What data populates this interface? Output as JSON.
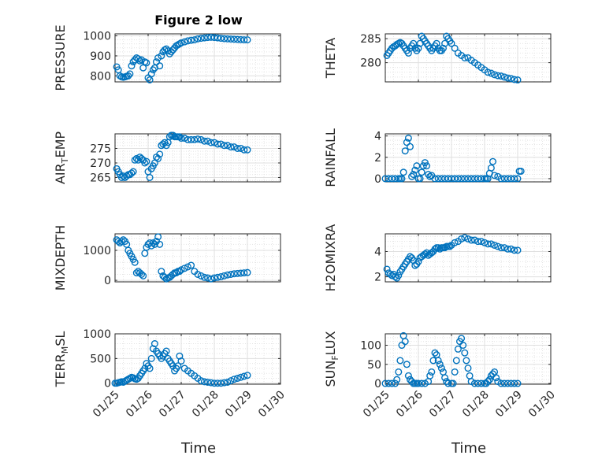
{
  "title": "Figure 2 low",
  "xlabel": "Time",
  "x_ticks": [
    "01/25",
    "01/26",
    "01/27",
    "01/28",
    "01/29",
    "01/30"
  ],
  "marker_color": "#0072BD",
  "chart_data": [
    {
      "type": "scatter",
      "ylabel": "PRESSURE",
      "ylim": [
        770,
        1010
      ],
      "yticks": [
        800,
        900,
        1000
      ],
      "grid": true,
      "x": [
        25.05,
        25.1,
        25.15,
        25.2,
        25.25,
        25.3,
        25.35,
        25.4,
        25.45,
        25.5,
        25.55,
        25.6,
        25.65,
        25.7,
        25.75,
        25.8,
        25.85,
        25.9,
        25.95,
        26.0,
        26.05,
        26.1,
        26.15,
        26.2,
        26.25,
        26.3,
        26.35,
        26.4,
        26.45,
        26.5,
        26.55,
        26.6,
        26.65,
        26.7,
        26.75,
        26.8,
        26.85,
        26.9,
        26.95,
        27.0,
        27.1,
        27.2,
        27.3,
        27.4,
        27.5,
        27.6,
        27.7,
        27.8,
        27.9,
        28.0,
        28.1,
        28.2,
        28.3,
        28.4,
        28.5,
        28.6,
        28.7,
        28.8,
        28.9,
        29.0
      ],
      "values": [
        845,
        830,
        800,
        795,
        793,
        795,
        798,
        800,
        810,
        850,
        870,
        880,
        890,
        885,
        875,
        880,
        840,
        870,
        865,
        790,
        780,
        810,
        830,
        840,
        870,
        890,
        850,
        900,
        920,
        930,
        935,
        925,
        910,
        920,
        930,
        940,
        950,
        955,
        960,
        965,
        970,
        975,
        978,
        980,
        985,
        988,
        990,
        992,
        993,
        992,
        990,
        988,
        986,
        985,
        984,
        983,
        982,
        981,
        980,
        980
      ]
    },
    {
      "type": "scatter",
      "ylabel": "THETA",
      "ylim": [
        276,
        286
      ],
      "yticks": [
        280,
        285
      ],
      "grid": true,
      "x": [
        25.05,
        25.1,
        25.15,
        25.2,
        25.25,
        25.3,
        25.35,
        25.4,
        25.45,
        25.5,
        25.55,
        25.6,
        25.65,
        25.7,
        25.75,
        25.8,
        25.85,
        25.9,
        25.95,
        26.0,
        26.05,
        26.1,
        26.15,
        26.2,
        26.25,
        26.3,
        26.35,
        26.4,
        26.45,
        26.5,
        26.55,
        26.6,
        26.65,
        26.7,
        26.75,
        26.8,
        26.85,
        26.9,
        26.95,
        27.0,
        27.1,
        27.2,
        27.3,
        27.4,
        27.5,
        27.6,
        27.7,
        27.8,
        27.9,
        28.0,
        28.1,
        28.2,
        28.3,
        28.4,
        28.5,
        28.6,
        28.7,
        28.8,
        28.9,
        29.0
      ],
      "values": [
        281.5,
        282,
        282.5,
        283,
        283.3,
        283.5,
        283.8,
        284,
        284.2,
        284,
        283.5,
        283,
        282.5,
        282,
        283,
        283.5,
        284,
        283,
        282.5,
        283,
        284,
        285.5,
        285,
        284.5,
        284,
        283.5,
        283,
        282.5,
        283,
        283.5,
        284,
        283,
        282.5,
        282.5,
        283,
        284,
        285.5,
        285,
        284.5,
        284,
        283,
        282,
        281.5,
        281,
        281,
        280.5,
        280,
        279.5,
        279,
        278.5,
        278,
        277.8,
        277.5,
        277.3,
        277.2,
        277,
        276.8,
        276.7,
        276.5,
        276.4
      ]
    },
    {
      "type": "scatter",
      "ylabel": "AIR_TEMP",
      "ylim": [
        263.5,
        280
      ],
      "yticks": [
        265,
        270,
        275
      ],
      "grid": true,
      "x": [
        25.05,
        25.1,
        25.15,
        25.2,
        25.25,
        25.3,
        25.35,
        25.4,
        25.45,
        25.5,
        25.55,
        25.6,
        25.65,
        25.7,
        25.75,
        25.8,
        25.85,
        25.9,
        25.95,
        26.0,
        26.05,
        26.1,
        26.15,
        26.2,
        26.25,
        26.3,
        26.35,
        26.4,
        26.45,
        26.5,
        26.55,
        26.6,
        26.65,
        26.7,
        26.75,
        26.8,
        26.85,
        26.9,
        26.95,
        27.0,
        27.1,
        27.2,
        27.3,
        27.4,
        27.5,
        27.6,
        27.7,
        27.8,
        27.9,
        28.0,
        28.1,
        28.2,
        28.3,
        28.4,
        28.5,
        28.6,
        28.7,
        28.8,
        28.9,
        29.0
      ],
      "values": [
        268,
        267,
        266,
        265,
        265.5,
        265,
        265.5,
        266,
        266,
        266.5,
        267,
        271,
        271.5,
        271,
        272,
        271.5,
        271,
        270,
        270.5,
        267,
        265,
        268,
        269,
        270,
        272,
        271.5,
        273,
        276,
        276.5,
        277,
        276,
        277,
        279,
        279.5,
        279.5,
        279,
        279,
        279,
        279,
        278.5,
        278.5,
        278,
        278,
        278,
        278.2,
        278,
        277.5,
        277.5,
        277,
        277,
        276.5,
        276.5,
        276,
        276,
        275.5,
        275.5,
        275,
        275,
        274.5,
        274.5
      ]
    },
    {
      "type": "scatter",
      "ylabel": "RAINFALL",
      "ylim": [
        -0.3,
        4.2
      ],
      "yticks": [
        0,
        2,
        4
      ],
      "grid": true,
      "x": [
        25.0,
        25.1,
        25.2,
        25.3,
        25.4,
        25.45,
        25.5,
        25.55,
        25.6,
        25.65,
        25.7,
        25.75,
        25.8,
        25.85,
        25.9,
        25.95,
        26.0,
        26.05,
        26.1,
        26.15,
        26.2,
        26.25,
        26.3,
        26.35,
        26.4,
        26.5,
        26.6,
        26.7,
        26.8,
        26.9,
        27.0,
        27.1,
        27.2,
        27.3,
        27.4,
        27.5,
        27.6,
        27.7,
        27.8,
        27.9,
        28.0,
        28.05,
        28.1,
        28.15,
        28.2,
        28.25,
        28.3,
        28.4,
        28.5,
        28.6,
        28.7,
        28.8,
        28.9,
        29.0,
        29.05,
        29.1
      ],
      "values": [
        0,
        0,
        0,
        0,
        0,
        0,
        0,
        0.6,
        2.6,
        3.4,
        3.8,
        3.0,
        0.2,
        0.4,
        0.8,
        1.2,
        0,
        0,
        0.6,
        1.2,
        1.5,
        1.2,
        0.4,
        0.2,
        0.3,
        0,
        0,
        0,
        0,
        0,
        0,
        0,
        0,
        0,
        0,
        0,
        0,
        0,
        0,
        0,
        0,
        0,
        0,
        0.5,
        1.0,
        1.6,
        0.3,
        0.2,
        0,
        0,
        0,
        0,
        0,
        0,
        0.7,
        0.7
      ]
    },
    {
      "type": "scatter",
      "ylabel": "MIXDEPTH",
      "ylim": [
        -50,
        1550
      ],
      "yticks": [
        0,
        1000
      ],
      "grid": true,
      "x": [
        25.05,
        25.1,
        25.15,
        25.2,
        25.25,
        25.3,
        25.35,
        25.4,
        25.45,
        25.5,
        25.55,
        25.6,
        25.65,
        25.7,
        25.75,
        25.8,
        25.85,
        25.9,
        25.95,
        26.0,
        26.05,
        26.1,
        26.15,
        26.2,
        26.25,
        26.3,
        26.35,
        26.4,
        26.45,
        26.5,
        26.55,
        26.6,
        26.65,
        26.7,
        26.75,
        26.8,
        26.85,
        26.9,
        26.95,
        27.0,
        27.1,
        27.2,
        27.3,
        27.4,
        27.5,
        27.6,
        27.7,
        27.8,
        27.9,
        28.0,
        28.1,
        28.2,
        28.3,
        28.4,
        28.5,
        28.6,
        28.7,
        28.8,
        28.9,
        29.0
      ],
      "values": [
        1350,
        1300,
        1250,
        1300,
        1350,
        1300,
        1200,
        1000,
        900,
        800,
        700,
        600,
        250,
        300,
        250,
        200,
        150,
        900,
        1100,
        1200,
        1250,
        1150,
        1250,
        1200,
        1300,
        1450,
        1200,
        300,
        150,
        100,
        50,
        80,
        100,
        150,
        200,
        250,
        250,
        300,
        300,
        350,
        400,
        450,
        500,
        300,
        200,
        150,
        100,
        80,
        50,
        80,
        100,
        120,
        150,
        180,
        200,
        220,
        230,
        240,
        250,
        260
      ]
    },
    {
      "type": "scatter",
      "ylabel": "H2OMIXRA",
      "ylim": [
        1.6,
        5.4
      ],
      "yticks": [
        2,
        4
      ],
      "grid": true,
      "x": [
        25.05,
        25.1,
        25.15,
        25.2,
        25.25,
        25.3,
        25.35,
        25.4,
        25.45,
        25.5,
        25.55,
        25.6,
        25.65,
        25.7,
        25.75,
        25.8,
        25.85,
        25.9,
        25.95,
        26.0,
        26.05,
        26.1,
        26.15,
        26.2,
        26.25,
        26.3,
        26.35,
        26.4,
        26.45,
        26.5,
        26.55,
        26.6,
        26.65,
        26.7,
        26.75,
        26.8,
        26.85,
        26.9,
        26.95,
        27.0,
        27.1,
        27.2,
        27.3,
        27.4,
        27.5,
        27.6,
        27.7,
        27.8,
        27.9,
        28.0,
        28.1,
        28.2,
        28.3,
        28.4,
        28.5,
        28.6,
        28.7,
        28.8,
        28.9,
        29.0
      ],
      "values": [
        2.6,
        2.3,
        2.2,
        2.1,
        2.2,
        2.0,
        1.9,
        2.1,
        2.4,
        2.6,
        2.8,
        3.0,
        3.2,
        3.4,
        3.6,
        3.5,
        3.3,
        2.9,
        3.0,
        3.2,
        3.5,
        3.6,
        3.7,
        3.8,
        3.9,
        3.7,
        3.8,
        3.9,
        4.0,
        4.2,
        4.3,
        4.3,
        4.2,
        4.3,
        4.3,
        4.3,
        4.4,
        4.4,
        4.4,
        4.5,
        4.7,
        4.8,
        5.0,
        5.1,
        5.0,
        4.9,
        4.9,
        4.8,
        4.8,
        4.7,
        4.6,
        4.6,
        4.5,
        4.4,
        4.3,
        4.3,
        4.2,
        4.2,
        4.1,
        4.1
      ]
    },
    {
      "type": "scatter",
      "ylabel": "TERR_MSL",
      "ylim": [
        -20,
        1000
      ],
      "yticks": [
        0,
        500,
        1000
      ],
      "grid": true,
      "x": [
        25.0,
        25.05,
        25.1,
        25.15,
        25.2,
        25.25,
        25.3,
        25.35,
        25.4,
        25.45,
        25.5,
        25.55,
        25.6,
        25.65,
        25.7,
        25.75,
        25.8,
        25.85,
        25.9,
        25.95,
        26.0,
        26.05,
        26.1,
        26.15,
        26.2,
        26.25,
        26.3,
        26.35,
        26.4,
        26.45,
        26.5,
        26.55,
        26.6,
        26.65,
        26.7,
        26.75,
        26.8,
        26.85,
        26.9,
        26.95,
        27.0,
        27.1,
        27.2,
        27.3,
        27.4,
        27.5,
        27.6,
        27.7,
        27.8,
        27.9,
        28.0,
        28.1,
        28.2,
        28.3,
        28.4,
        28.5,
        28.6,
        28.7,
        28.8,
        28.9,
        29.0
      ],
      "values": [
        0,
        0,
        10,
        20,
        30,
        20,
        40,
        60,
        80,
        100,
        120,
        110,
        90,
        80,
        100,
        150,
        200,
        250,
        300,
        400,
        350,
        300,
        500,
        700,
        800,
        650,
        600,
        550,
        500,
        550,
        600,
        650,
        500,
        450,
        400,
        350,
        250,
        300,
        350,
        550,
        450,
        300,
        250,
        200,
        150,
        100,
        50,
        30,
        20,
        10,
        0,
        0,
        0,
        10,
        20,
        50,
        80,
        100,
        120,
        140,
        160
      ]
    },
    {
      "type": "scatter",
      "ylabel": "SUN_FLUX",
      "ylim": [
        -2,
        130
      ],
      "yticks": [
        0,
        50,
        100
      ],
      "grid": true,
      "x": [
        25.0,
        25.1,
        25.2,
        25.3,
        25.35,
        25.4,
        25.45,
        25.5,
        25.55,
        25.6,
        25.65,
        25.7,
        25.75,
        25.8,
        25.85,
        25.9,
        25.95,
        26.0,
        26.1,
        26.2,
        26.3,
        26.35,
        26.4,
        26.45,
        26.5,
        26.55,
        26.6,
        26.65,
        26.7,
        26.75,
        26.8,
        26.85,
        26.9,
        27.0,
        27.05,
        27.1,
        27.15,
        27.2,
        27.25,
        27.3,
        27.35,
        27.4,
        27.45,
        27.5,
        27.55,
        27.6,
        27.7,
        27.8,
        27.9,
        28.0,
        28.05,
        28.1,
        28.15,
        28.2,
        28.25,
        28.3,
        28.35,
        28.4,
        28.5,
        28.6,
        28.7,
        28.8,
        28.9,
        29.0
      ],
      "values": [
        0,
        0,
        0,
        0,
        10,
        30,
        60,
        100,
        125,
        110,
        50,
        20,
        10,
        5,
        0,
        0,
        0,
        0,
        0,
        0,
        5,
        20,
        30,
        60,
        80,
        75,
        60,
        50,
        40,
        30,
        15,
        5,
        0,
        0,
        0,
        30,
        60,
        90,
        110,
        118,
        100,
        80,
        60,
        40,
        20,
        5,
        0,
        0,
        0,
        0,
        0,
        5,
        10,
        20,
        25,
        30,
        15,
        5,
        0,
        0,
        0,
        0,
        0,
        0
      ]
    }
  ]
}
